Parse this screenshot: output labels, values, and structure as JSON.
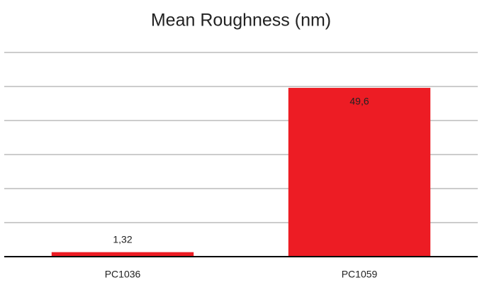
{
  "chart_data": {
    "type": "bar",
    "title": "Mean Roughness (nm)",
    "categories": [
      "PC1036",
      "PC1059"
    ],
    "values": [
      1.32,
      49.6
    ],
    "value_labels": [
      "1,32",
      "49,6"
    ],
    "color": "#ed1c24",
    "ylim": [
      0,
      60
    ],
    "yticks": [
      0,
      10,
      20,
      30,
      40,
      50,
      60
    ],
    "grid": true
  }
}
